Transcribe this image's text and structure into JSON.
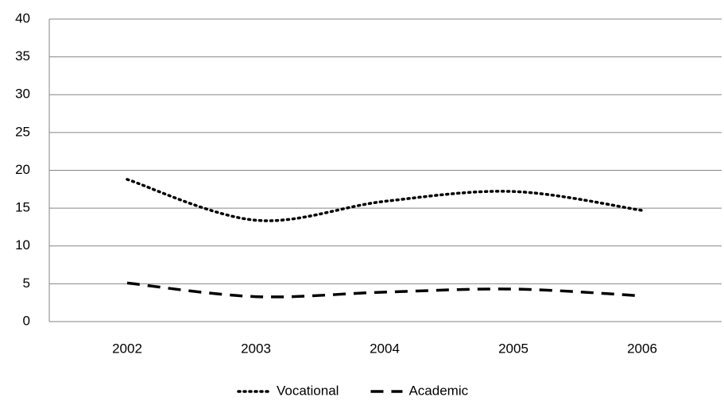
{
  "chart_data": {
    "type": "line",
    "categories": [
      "2002",
      "2003",
      "2004",
      "2005",
      "2006"
    ],
    "series": [
      {
        "name": "Vocational",
        "color": "#000000",
        "line_style": "dotted",
        "values": [
          18.8,
          13.4,
          15.9,
          17.2,
          14.7
        ]
      },
      {
        "name": "Academic",
        "color": "#000000",
        "line_style": "dashed",
        "values": [
          5.1,
          3.3,
          3.9,
          4.3,
          3.4
        ]
      }
    ],
    "ylim": [
      0,
      40
    ],
    "yticks": [
      0,
      5,
      10,
      15,
      20,
      25,
      30,
      35,
      40
    ],
    "grid": true,
    "smooth": true,
    "legend": "bottom"
  }
}
